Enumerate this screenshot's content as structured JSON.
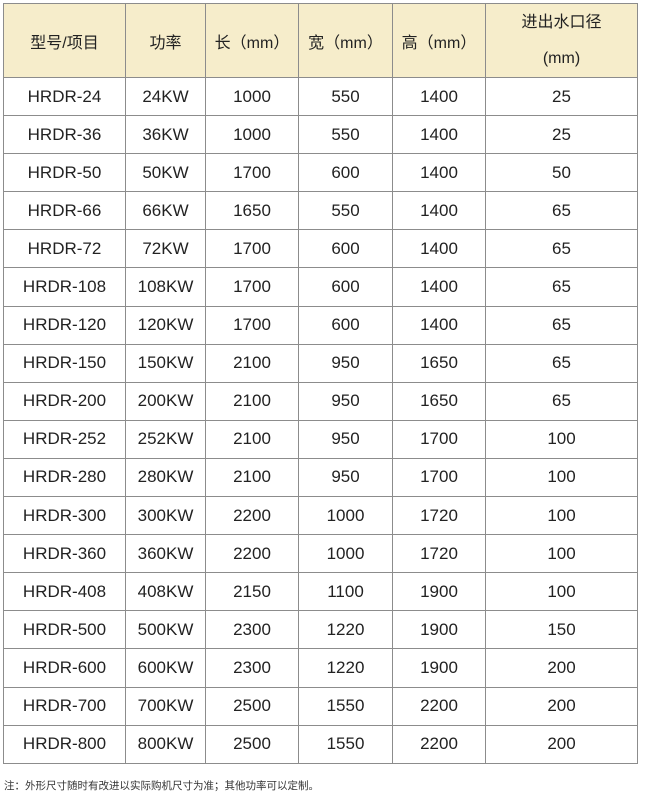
{
  "table": {
    "headers": [
      "型号/项目",
      "功率",
      "长（mm）",
      "宽（mm）",
      "高（mm）"
    ],
    "last_header": {
      "line1": "进出水口径",
      "line2": "(mm)"
    },
    "rows": [
      [
        "HRDR-24",
        "24KW",
        "1000",
        "550",
        "1400",
        "25"
      ],
      [
        "HRDR-36",
        "36KW",
        "1000",
        "550",
        "1400",
        "25"
      ],
      [
        "HRDR-50",
        "50KW",
        "1700",
        "600",
        "1400",
        "50"
      ],
      [
        "HRDR-66",
        "66KW",
        "1650",
        "550",
        "1400",
        "65"
      ],
      [
        "HRDR-72",
        "72KW",
        "1700",
        "600",
        "1400",
        "65"
      ],
      [
        "HRDR-108",
        "108KW",
        "1700",
        "600",
        "1400",
        "65"
      ],
      [
        "HRDR-120",
        "120KW",
        "1700",
        "600",
        "1400",
        "65"
      ],
      [
        "HRDR-150",
        "150KW",
        "2100",
        "950",
        "1650",
        "65"
      ],
      [
        "HRDR-200",
        "200KW",
        "2100",
        "950",
        "1650",
        "65"
      ],
      [
        "HRDR-252",
        "252KW",
        "2100",
        "950",
        "1700",
        "100"
      ],
      [
        "HRDR-280",
        "280KW",
        "2100",
        "950",
        "1700",
        "100"
      ],
      [
        "HRDR-300",
        "300KW",
        "2200",
        "1000",
        "1720",
        "100"
      ],
      [
        "HRDR-360",
        "360KW",
        "2200",
        "1000",
        "1720",
        "100"
      ],
      [
        "HRDR-408",
        "408KW",
        "2150",
        "1100",
        "1900",
        "100"
      ],
      [
        "HRDR-500",
        "500KW",
        "2300",
        "1220",
        "1900",
        "150"
      ],
      [
        "HRDR-600",
        "600KW",
        "2300",
        "1220",
        "1900",
        "200"
      ],
      [
        "HRDR-700",
        "700KW",
        "2500",
        "1550",
        "2200",
        "200"
      ],
      [
        "HRDR-800",
        "800KW",
        "2500",
        "1550",
        "2200",
        "200"
      ]
    ]
  },
  "note": "注：外形尺寸随时有改进以实际购机尺寸为准；其他功率可以定制。",
  "colors": {
    "header_bg": "#f6edcb",
    "border": "#8c8c8c"
  }
}
